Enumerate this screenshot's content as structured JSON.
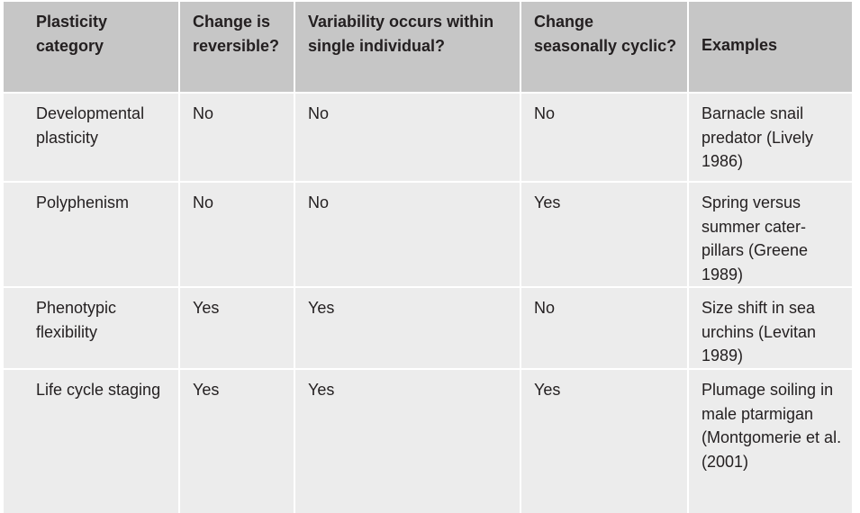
{
  "table": {
    "headers": {
      "category": "Plasticity category",
      "reversible": "Change is reversible?",
      "individual": "Variability occurs within single individual?",
      "seasonal": "Change seasonally cyclic?",
      "examples": "Examples"
    },
    "rows": [
      {
        "category": "Developmental plasticity",
        "reversible": "No",
        "individual": "No",
        "seasonal": "No",
        "examples": "Barnacle snail predator (Lively 1986)"
      },
      {
        "category": "Polyphenism",
        "reversible": "No",
        "individual": "No",
        "seasonal": "Yes",
        "examples": "Spring versus summer cater-pillars (Greene 1989)"
      },
      {
        "category": "Phenotypic flexibility",
        "reversible": "Yes",
        "individual": "Yes",
        "seasonal": "No",
        "examples": "Size shift in sea urchins (Levitan 1989)"
      },
      {
        "category": "Life cycle staging",
        "reversible": "Yes",
        "individual": "Yes",
        "seasonal": "Yes",
        "examples": "Plumage soiling in male ptarmigan (Montgomerie et al. (2001)"
      }
    ]
  }
}
